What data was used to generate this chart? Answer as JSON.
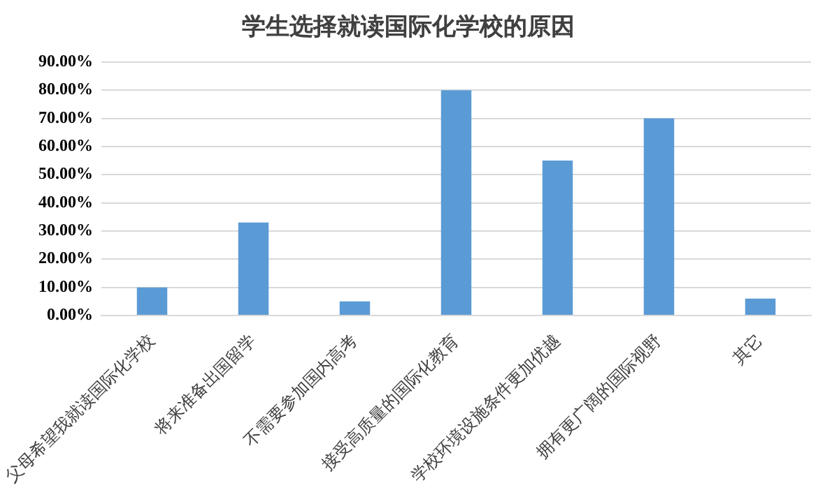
{
  "chart_data": {
    "type": "bar",
    "title": "学生选择就读国际化学校的原因",
    "categories": [
      "父母希望我就读国际化学校",
      "将来准备出国留学",
      "不需要参加国内高考",
      "接受高质量的国际化教育",
      "学校环境设施条件更加优越",
      "拥有更广阔的国际视野",
      "其它"
    ],
    "values": [
      10,
      33,
      5,
      80,
      55,
      70,
      6
    ],
    "color": "#5b9bd5",
    "ylim": [
      0,
      90
    ],
    "yticks": [
      {
        "value": 0,
        "label": "0.00%"
      },
      {
        "value": 10,
        "label": "10.00%"
      },
      {
        "value": 20,
        "label": "20.00%"
      },
      {
        "value": 30,
        "label": "30.00%"
      },
      {
        "value": 40,
        "label": "40.00%"
      },
      {
        "value": 50,
        "label": "50.00%"
      },
      {
        "value": 60,
        "label": "60.00%"
      },
      {
        "value": 70,
        "label": "70.00%"
      },
      {
        "value": 80,
        "label": "80.00%"
      },
      {
        "value": 90,
        "label": "90.00%"
      }
    ],
    "grid": "y"
  }
}
